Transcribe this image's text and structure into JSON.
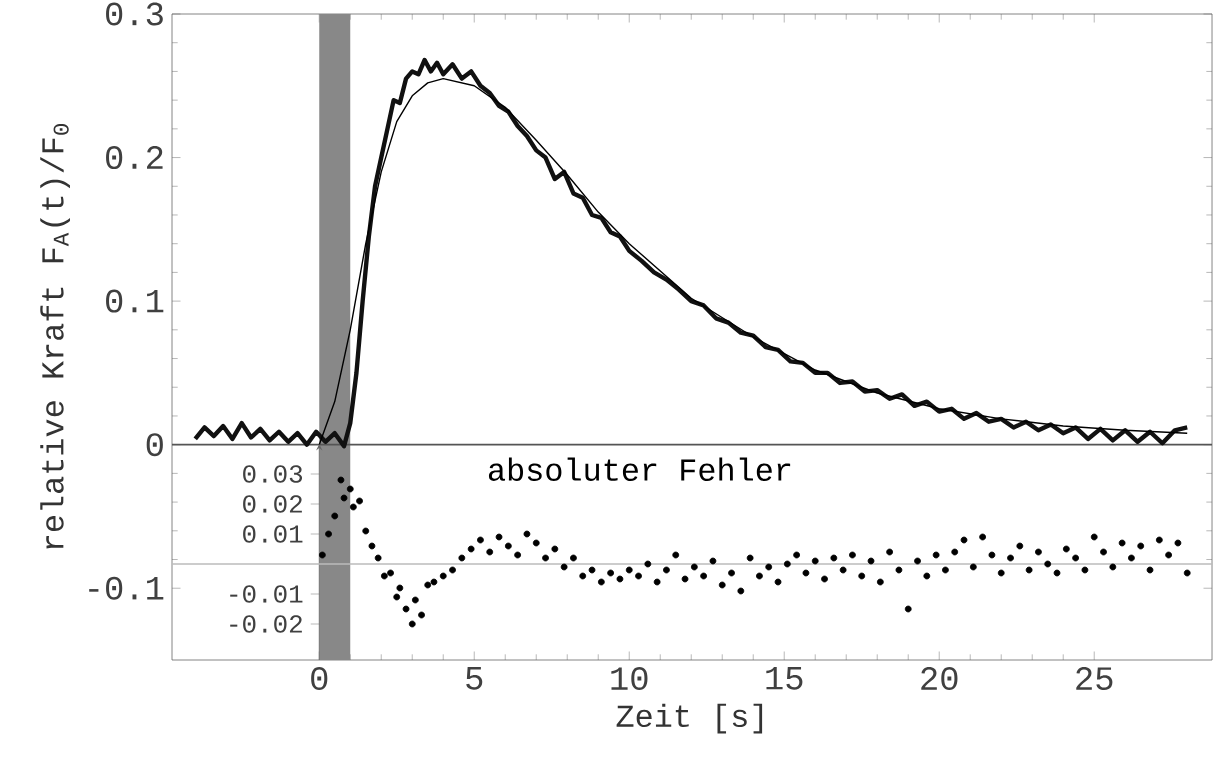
{
  "chart_data": [
    {
      "type": "line",
      "xlabel": "Zeit  [s]",
      "ylabel": "relative Kraft  F$_{A}$(t)/F$_{0}$",
      "xlim": [
        -4.75,
        28.8
      ],
      "ylim": [
        -0.15,
        0.3
      ],
      "xticks": [
        0,
        5,
        10,
        15,
        20,
        25
      ],
      "yticks": [
        -0.1,
        0,
        0.1,
        0.2,
        0.3
      ],
      "bands": [
        {
          "axis": "x",
          "from": 0,
          "to": 1,
          "color": "#888888"
        }
      ],
      "ref_lines": [
        {
          "axis": "y",
          "value": 0,
          "color": "#555555"
        }
      ],
      "series": [
        {
          "color": "#111111",
          "x": [
            -4.0,
            -3.7,
            -3.4,
            -3.1,
            -2.8,
            -2.5,
            -2.2,
            -1.9,
            -1.6,
            -1.3,
            -1.0,
            -0.7,
            -0.4,
            -0.1,
            0.2,
            0.5,
            0.8,
            1.0,
            1.2,
            1.4,
            1.6,
            1.8,
            2.0,
            2.2,
            2.4,
            2.6,
            2.8,
            3.0,
            3.2,
            3.4,
            3.6,
            3.8,
            4.0,
            4.3,
            4.6,
            4.9,
            5.2,
            5.5,
            5.8,
            6.1,
            6.4,
            6.7,
            7.0,
            7.3,
            7.6,
            7.9,
            8.2,
            8.5,
            8.8,
            9.1,
            9.4,
            9.7,
            10.0,
            10.4,
            10.8,
            11.2,
            11.6,
            12.0,
            12.4,
            12.8,
            13.2,
            13.6,
            14.0,
            14.4,
            14.8,
            15.2,
            15.6,
            16.0,
            16.4,
            16.8,
            17.2,
            17.6,
            18.0,
            18.4,
            18.8,
            19.2,
            19.6,
            20.0,
            20.4,
            20.8,
            21.2,
            21.6,
            22.0,
            22.4,
            22.8,
            23.2,
            23.6,
            24.0,
            24.4,
            24.8,
            25.2,
            25.6,
            26.0,
            26.4,
            26.8,
            27.2,
            27.6,
            28.0
          ],
          "values": [
            0.004,
            0.012,
            0.006,
            0.013,
            0.004,
            0.015,
            0.005,
            0.011,
            0.003,
            0.009,
            0.002,
            0.008,
            0.0,
            0.009,
            0.002,
            0.008,
            -0.001,
            0.015,
            0.05,
            0.1,
            0.145,
            0.18,
            0.2,
            0.22,
            0.24,
            0.238,
            0.255,
            0.26,
            0.258,
            0.268,
            0.26,
            0.266,
            0.258,
            0.265,
            0.255,
            0.26,
            0.25,
            0.245,
            0.236,
            0.232,
            0.222,
            0.215,
            0.205,
            0.2,
            0.185,
            0.19,
            0.175,
            0.172,
            0.16,
            0.158,
            0.148,
            0.145,
            0.135,
            0.128,
            0.12,
            0.115,
            0.108,
            0.1,
            0.097,
            0.088,
            0.085,
            0.078,
            0.076,
            0.068,
            0.066,
            0.058,
            0.057,
            0.05,
            0.05,
            0.043,
            0.044,
            0.037,
            0.038,
            0.032,
            0.035,
            0.027,
            0.03,
            0.023,
            0.025,
            0.018,
            0.022,
            0.016,
            0.018,
            0.012,
            0.016,
            0.01,
            0.014,
            0.008,
            0.012,
            0.004,
            0.011,
            0.003,
            0.01,
            0.002,
            0.009,
            0.001,
            0.01,
            0.012
          ]
        },
        {
          "color": "#000000",
          "x": [
            0,
            0.5,
            1,
            1.5,
            2,
            2.5,
            3,
            3.5,
            4,
            5,
            6,
            7,
            8,
            9,
            10,
            12,
            14,
            16,
            18,
            20,
            22,
            24,
            26,
            28
          ],
          "values": [
            0,
            0.03,
            0.08,
            0.14,
            0.19,
            0.225,
            0.243,
            0.252,
            0.255,
            0.25,
            0.235,
            0.212,
            0.188,
            0.162,
            0.14,
            0.102,
            0.075,
            0.052,
            0.036,
            0.025,
            0.018,
            0.013,
            0.01,
            0.008
          ]
        }
      ]
    },
    {
      "type": "scatter",
      "annotations": [
        "absoluter Fehler"
      ],
      "xlim": [
        -4.75,
        28.8
      ],
      "ylim": [
        -0.032,
        0.04
      ],
      "yticks": [
        -0.02,
        -0.01,
        0.01,
        0.02,
        0.03
      ],
      "tick_labels": "y",
      "ref_lines": [
        {
          "axis": "y",
          "value": 0,
          "color": "#bbbbbb"
        }
      ],
      "series": [
        {
          "color": "#000000",
          "x": [
            0.1,
            0.3,
            0.5,
            0.7,
            0.8,
            1.0,
            1.1,
            1.3,
            1.5,
            1.7,
            1.9,
            2.1,
            2.3,
            2.5,
            2.6,
            2.8,
            3.0,
            3.1,
            3.3,
            3.5,
            3.7,
            4.0,
            4.3,
            4.6,
            4.9,
            5.2,
            5.5,
            5.8,
            6.1,
            6.4,
            6.7,
            7.0,
            7.3,
            7.6,
            7.9,
            8.2,
            8.5,
            8.8,
            9.1,
            9.4,
            9.7,
            10.0,
            10.3,
            10.6,
            10.9,
            11.2,
            11.5,
            11.8,
            12.1,
            12.4,
            12.7,
            13.0,
            13.3,
            13.6,
            13.9,
            14.2,
            14.5,
            14.8,
            15.1,
            15.4,
            15.7,
            16.0,
            16.3,
            16.6,
            16.9,
            17.2,
            17.5,
            17.8,
            18.1,
            18.4,
            18.7,
            19.0,
            19.3,
            19.6,
            19.9,
            20.2,
            20.5,
            20.8,
            21.1,
            21.4,
            21.7,
            22.0,
            22.3,
            22.6,
            22.9,
            23.2,
            23.5,
            23.8,
            24.1,
            24.4,
            24.7,
            25.0,
            25.3,
            25.6,
            25.9,
            26.2,
            26.5,
            26.8,
            27.1,
            27.4,
            27.7,
            28.0
          ],
          "values": [
            0.003,
            0.01,
            0.016,
            0.028,
            0.022,
            0.025,
            0.019,
            0.021,
            0.011,
            0.006,
            0.002,
            -0.004,
            -0.003,
            -0.011,
            -0.008,
            -0.015,
            -0.02,
            -0.012,
            -0.017,
            -0.007,
            -0.006,
            -0.004,
            -0.002,
            0.002,
            0.005,
            0.008,
            0.004,
            0.009,
            0.006,
            0.003,
            0.01,
            0.007,
            0.002,
            0.005,
            -0.001,
            0.002,
            -0.004,
            -0.002,
            -0.006,
            -0.003,
            -0.005,
            -0.002,
            -0.004,
            0.0,
            -0.006,
            -0.002,
            0.003,
            -0.005,
            -0.001,
            -0.004,
            0.001,
            -0.007,
            -0.003,
            -0.009,
            0.002,
            -0.004,
            -0.001,
            -0.006,
            0.0,
            0.003,
            -0.003,
            0.001,
            -0.005,
            0.002,
            -0.002,
            0.003,
            -0.004,
            0.001,
            -0.006,
            0.004,
            -0.002,
            -0.015,
            0.001,
            -0.004,
            0.003,
            -0.002,
            0.004,
            0.008,
            -0.001,
            0.009,
            0.003,
            -0.003,
            0.002,
            0.006,
            -0.002,
            0.004,
            0.0,
            -0.003,
            0.005,
            0.002,
            -0.002,
            0.009,
            0.004,
            -0.001,
            0.007,
            0.002,
            0.006,
            -0.002,
            0.008,
            0.003,
            0.007,
            -0.003
          ]
        }
      ]
    }
  ]
}
